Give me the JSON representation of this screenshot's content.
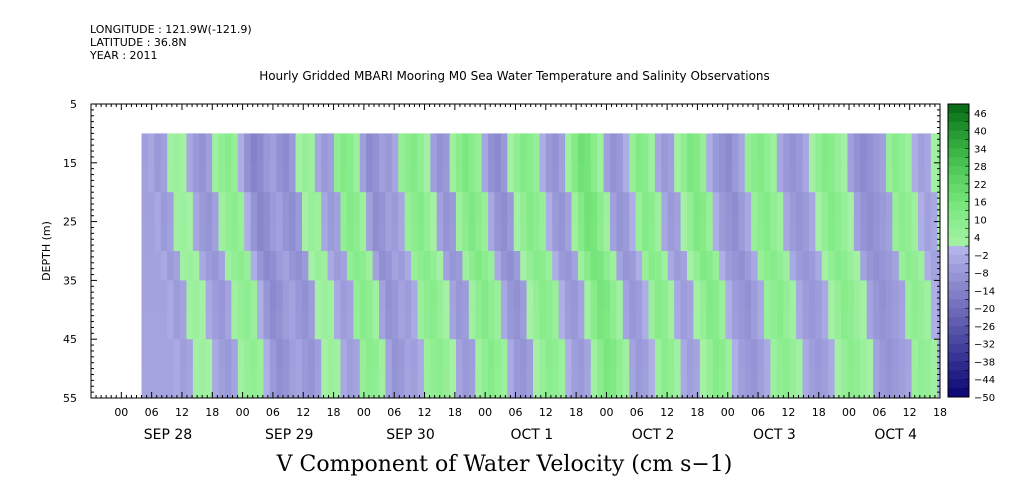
{
  "header": {
    "longitude": "LONGITUDE : 121.9W(-121.9)",
    "latitude": "LATITUDE : 36.8N",
    "year": "YEAR : 2011"
  },
  "chart_data": {
    "type": "heatmap",
    "title": "Hourly Gridded MBARI Mooring M0 Sea Water Temperature and Salinity Observations",
    "variable_label": "V Component of Water Velocity (cm s−1)",
    "ylabel": "DEPTH (m)",
    "ylim": [
      5,
      55
    ],
    "y_inverted": true,
    "y_ticks": [
      5,
      15,
      25,
      35,
      45,
      55
    ],
    "x_hour_ticks": [
      "00",
      "06",
      "12",
      "18",
      "00",
      "06",
      "12",
      "18",
      "00",
      "06",
      "12",
      "18",
      "00",
      "06",
      "12",
      "18",
      "00",
      "06",
      "12",
      "18",
      "00",
      "06",
      "12",
      "18",
      "00",
      "06",
      "12",
      "18"
    ],
    "x_day_labels": [
      "SEP 28",
      "SEP 29",
      "SEP 30",
      "OCT  1",
      "OCT  2",
      "OCT  3",
      "OCT  4"
    ],
    "data_depth_range": [
      10,
      55
    ],
    "data_time_range_hours": [
      4,
      164
    ],
    "colorbar": {
      "ticks": [
        "46",
        "40",
        "34",
        "28",
        "22",
        "16",
        "10",
        "4",
        "−2",
        "−8",
        "−14",
        "−20",
        "−26",
        "−32",
        "−38",
        "−44",
        "−50"
      ],
      "min": -50,
      "max": 49,
      "step": 3
    },
    "column_values_cm_s": [
      -6,
      -4,
      -8,
      -6,
      3,
      5,
      2,
      -4,
      -8,
      -10,
      -6,
      4,
      8,
      10,
      6,
      -2,
      -10,
      -14,
      -12,
      -8,
      -6,
      -10,
      -12,
      -8,
      2,
      6,
      4,
      -4,
      -8,
      -6,
      8,
      12,
      10,
      4,
      -6,
      -12,
      -10,
      -6,
      -8,
      -4,
      6,
      10,
      12,
      8,
      2,
      -6,
      -10,
      -8,
      4,
      10,
      14,
      10,
      6,
      -4,
      -10,
      -12,
      -8,
      2,
      8,
      12,
      10,
      6,
      -2,
      -8,
      -10,
      -6,
      4,
      12,
      18,
      16,
      10,
      4,
      -6,
      -10,
      -8,
      -2,
      6,
      12,
      10,
      4,
      -4,
      -8,
      -6,
      2,
      8,
      14,
      12,
      6,
      -2,
      -8,
      -10,
      -12,
      -8,
      -4,
      6,
      10,
      12,
      8,
      4,
      -4,
      -8,
      -10,
      -8,
      -4,
      2,
      8,
      12,
      10,
      6,
      2,
      -6,
      -10,
      -12,
      -10,
      -8,
      -6,
      6,
      10,
      8,
      4,
      -2,
      -6,
      -4,
      2,
      6,
      4
    ]
  }
}
